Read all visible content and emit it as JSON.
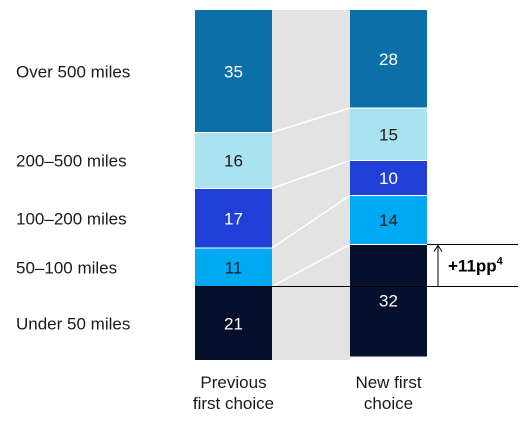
{
  "chart_data": {
    "type": "bar",
    "stacked": true,
    "normalized_total": 100,
    "categories": [
      "Previous first choice",
      "New first choice"
    ],
    "series": [
      {
        "name": "Over 500 miles",
        "values": [
          35,
          28
        ],
        "color": "#0d6fa8",
        "text_color": "#ffffff"
      },
      {
        "name": "200–500 miles",
        "values": [
          16,
          15
        ],
        "color": "#a9e3f0",
        "text_color": "#1a1a1a"
      },
      {
        "name": "100–200 miles",
        "values": [
          17,
          10
        ],
        "color": "#2140d8",
        "text_color": "#ffffff"
      },
      {
        "name": "50–100 miles",
        "values": [
          11,
          14
        ],
        "color": "#00a9f4",
        "text_color": "#1a1a1a"
      },
      {
        "name": "Under 50 miles",
        "values": [
          21,
          32
        ],
        "color": "#060f2c",
        "text_color": "#ffffff"
      }
    ],
    "category_labels": [
      [
        "Previous",
        "first choice"
      ],
      [
        "New first",
        "choice"
      ]
    ],
    "annotation": {
      "text": "+11pp",
      "superscript": "4"
    },
    "connector_color": "#e3e3e3",
    "connector_line_color": "#ffffff",
    "grid": false,
    "legend": "left-row-labels"
  }
}
